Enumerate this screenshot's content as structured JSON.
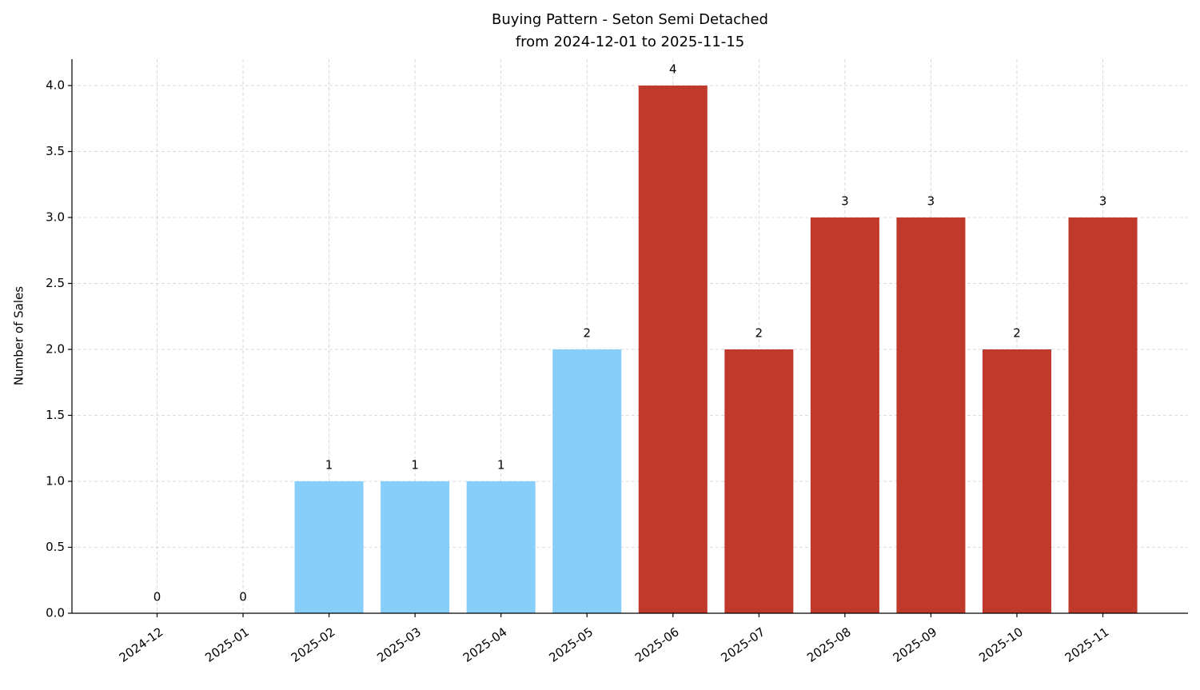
{
  "chart_data": {
    "type": "bar",
    "title": "Buying Pattern - Seton Semi Detached",
    "subtitle": "from 2024-12-01 to 2025-11-15",
    "y_label": "Number of Sales",
    "categories": [
      "2024-12",
      "2025-01",
      "2025-02",
      "2025-03",
      "2025-04",
      "2025-05",
      "2025-06",
      "2025-07",
      "2025-08",
      "2025-09",
      "2025-10",
      "2025-11"
    ],
    "values": [
      0,
      0,
      1,
      1,
      1,
      2,
      4,
      2,
      3,
      3,
      2,
      3
    ],
    "colors": [
      "#87cefa",
      "#87cefa",
      "#87cefa",
      "#87cefa",
      "#87cefa",
      "#87cefa",
      "#c0392b",
      "#c0392b",
      "#c0392b",
      "#c0392b",
      "#c0392b",
      "#c0392b"
    ],
    "ylim": [
      0,
      4.2
    ],
    "yticks": [
      {
        "value": 0,
        "label": "0.0"
      },
      0.5,
      {
        "value": 1,
        "label": "1.0"
      },
      1.5,
      {
        "value": 2,
        "label": "2.0"
      },
      2.5,
      {
        "value": 3,
        "label": "3.0"
      },
      3.5,
      {
        "value": 4,
        "label": "4.0"
      }
    ],
    "grid": true
  }
}
